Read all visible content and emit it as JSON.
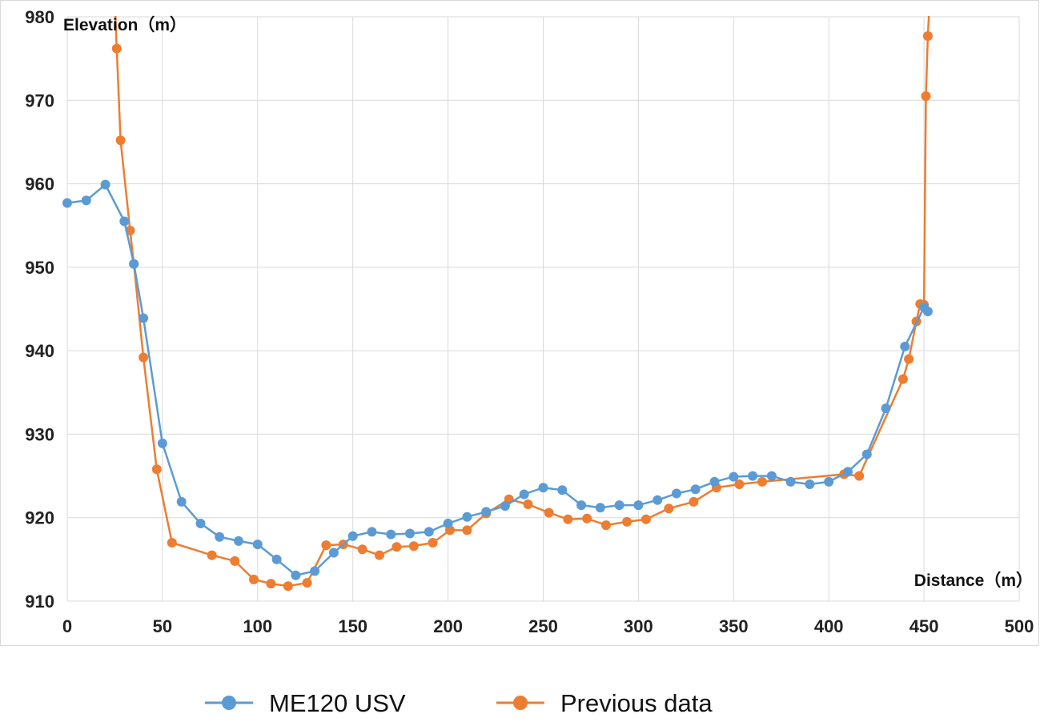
{
  "chart_data": {
    "type": "line",
    "title": "",
    "xlabel": "Distance（m）",
    "ylabel": "Elevation（m）",
    "xlim": [
      0,
      500
    ],
    "ylim": [
      910,
      980
    ],
    "x_ticks": [
      "0",
      "50",
      "100",
      "150",
      "200",
      "250",
      "300",
      "350",
      "400",
      "450",
      "500"
    ],
    "y_ticks": [
      "910",
      "920",
      "930",
      "940",
      "950",
      "960",
      "970",
      "980"
    ],
    "grid": true,
    "legend_position": "bottom",
    "series": [
      {
        "name": "ME120 USV",
        "color": "#5B9BD5",
        "points": [
          [
            0,
            957.7
          ],
          [
            10,
            958.0
          ],
          [
            20,
            959.9
          ],
          [
            30,
            955.5
          ],
          [
            35,
            950.4
          ],
          [
            40,
            943.9
          ],
          [
            50,
            928.9
          ],
          [
            60,
            921.9
          ],
          [
            70,
            919.3
          ],
          [
            80,
            917.7
          ],
          [
            90,
            917.2
          ],
          [
            100,
            916.8
          ],
          [
            110,
            915.0
          ],
          [
            120,
            913.1
          ],
          [
            130,
            913.6
          ],
          [
            140,
            915.8
          ],
          [
            150,
            917.8
          ],
          [
            160,
            918.3
          ],
          [
            170,
            918.0
          ],
          [
            180,
            918.1
          ],
          [
            190,
            918.3
          ],
          [
            200,
            919.3
          ],
          [
            210,
            920.1
          ],
          [
            220,
            920.7
          ],
          [
            230,
            921.4
          ],
          [
            240,
            922.8
          ],
          [
            250,
            923.6
          ],
          [
            260,
            923.3
          ],
          [
            270,
            921.5
          ],
          [
            280,
            921.2
          ],
          [
            290,
            921.5
          ],
          [
            300,
            921.5
          ],
          [
            310,
            922.1
          ],
          [
            320,
            922.9
          ],
          [
            330,
            923.4
          ],
          [
            340,
            924.3
          ],
          [
            350,
            924.9
          ],
          [
            360,
            925.0
          ],
          [
            370,
            925.0
          ],
          [
            380,
            924.3
          ],
          [
            390,
            924.0
          ],
          [
            400,
            924.3
          ],
          [
            410,
            925.5
          ],
          [
            420,
            927.6
          ],
          [
            430,
            933.1
          ],
          [
            440,
            940.5
          ],
          [
            450,
            945.2
          ],
          [
            452,
            944.7
          ]
        ]
      },
      {
        "name": "Previous data",
        "color": "#ED7D31",
        "points": [
          [
            25,
            982.0
          ],
          [
            26,
            976.2
          ],
          [
            28,
            965.2
          ],
          [
            33,
            954.4
          ],
          [
            35,
            950.4
          ],
          [
            40,
            939.2
          ],
          [
            47,
            925.8
          ],
          [
            55,
            917.0
          ],
          [
            76,
            915.5
          ],
          [
            88,
            914.8
          ],
          [
            98,
            912.6
          ],
          [
            107,
            912.1
          ],
          [
            116,
            911.8
          ],
          [
            126,
            912.2
          ],
          [
            136,
            916.7
          ],
          [
            145,
            916.8
          ],
          [
            155,
            916.2
          ],
          [
            164,
            915.5
          ],
          [
            173,
            916.5
          ],
          [
            182,
            916.6
          ],
          [
            192,
            917.0
          ],
          [
            201,
            918.5
          ],
          [
            210,
            918.5
          ],
          [
            220,
            920.5
          ],
          [
            232,
            922.2
          ],
          [
            242,
            921.6
          ],
          [
            253,
            920.6
          ],
          [
            263,
            919.8
          ],
          [
            273,
            919.9
          ],
          [
            283,
            919.1
          ],
          [
            294,
            919.5
          ],
          [
            304,
            919.8
          ],
          [
            316,
            921.1
          ],
          [
            329,
            921.9
          ],
          [
            341,
            923.6
          ],
          [
            353,
            924.0
          ],
          [
            365,
            924.3
          ],
          [
            408,
            925.2
          ],
          [
            416,
            925.0
          ],
          [
            439,
            936.6
          ],
          [
            442,
            939.0
          ],
          [
            446,
            943.5
          ],
          [
            448,
            945.6
          ],
          [
            450,
            945.5
          ],
          [
            451,
            970.5
          ],
          [
            452,
            977.7
          ],
          [
            453,
            982.0
          ]
        ]
      }
    ]
  }
}
